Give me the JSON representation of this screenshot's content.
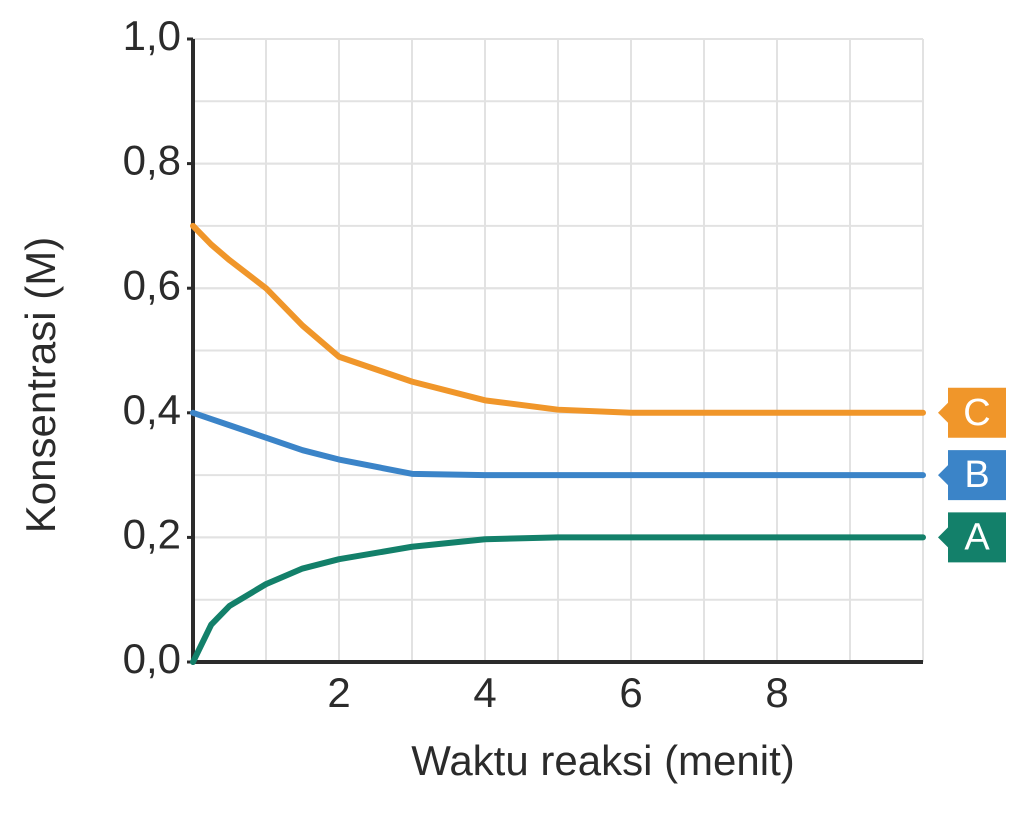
{
  "chart_data": {
    "type": "line",
    "x_label": "Waktu reaksi (menit)",
    "y_label": "Konsentrasi (M)",
    "x": [
      0,
      0.25,
      0.5,
      1,
      1.5,
      2,
      3,
      4,
      5,
      6,
      7,
      8,
      9,
      10
    ],
    "series": [
      {
        "name": "C",
        "color": "#f0962a",
        "values": [
          0.7,
          0.67,
          0.645,
          0.6,
          0.54,
          0.49,
          0.45,
          0.42,
          0.405,
          0.4,
          0.4,
          0.4,
          0.4,
          0.4
        ]
      },
      {
        "name": "B",
        "color": "#3b84c8",
        "values": [
          0.4,
          0.39,
          0.38,
          0.36,
          0.34,
          0.325,
          0.302,
          0.3,
          0.3,
          0.3,
          0.3,
          0.3,
          0.3,
          0.3
        ]
      },
      {
        "name": "A",
        "color": "#13806a",
        "values": [
          0,
          0.06,
          0.09,
          0.125,
          0.15,
          0.165,
          0.185,
          0.197,
          0.2,
          0.2,
          0.2,
          0.2,
          0.2,
          0.2
        ]
      }
    ],
    "xlim": [
      0,
      10
    ],
    "ylim": [
      0,
      1
    ],
    "xticks": [
      2,
      4,
      6,
      8
    ],
    "yticks": [
      {
        "value": 0,
        "label": "0,0"
      },
      {
        "value": 0.2,
        "label": "0,2"
      },
      {
        "value": 0.4,
        "label": "0,4"
      },
      {
        "value": 0.6,
        "label": "0,6"
      },
      {
        "value": 0.8,
        "label": "0,8"
      },
      {
        "value": 1,
        "label": "1,0"
      }
    ],
    "grid": true
  }
}
